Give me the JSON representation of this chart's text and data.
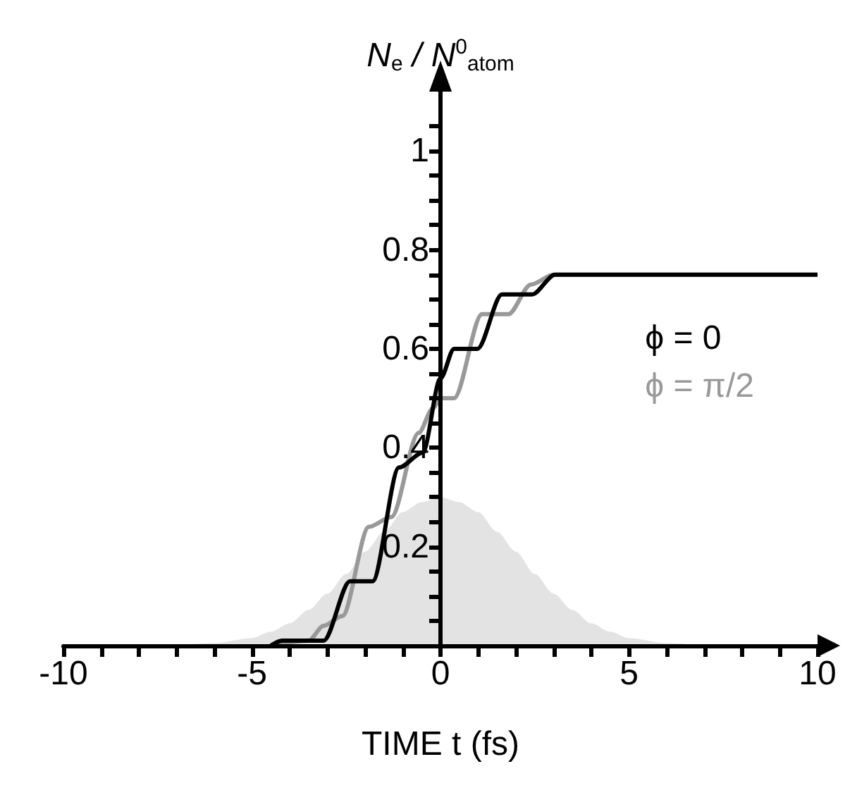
{
  "chart_data": {
    "type": "line",
    "xlabel": "TIME t (fs)",
    "ylabel": "N$_{e}$ / N$^{0}$$_{atom}$",
    "xlim": [
      -10,
      10
    ],
    "ylim": [
      0,
      1.12
    ],
    "xticks": [
      -10,
      {
        "value": -9,
        "label": null
      },
      {
        "value": -8,
        "label": null
      },
      {
        "value": -7,
        "label": null
      },
      {
        "value": -6,
        "label": null
      },
      -5,
      {
        "value": -4,
        "label": null
      },
      {
        "value": -3,
        "label": null
      },
      {
        "value": -2,
        "label": null
      },
      {
        "value": -1,
        "label": null
      },
      0,
      {
        "value": 1,
        "label": null
      },
      {
        "value": 2,
        "label": null
      },
      {
        "value": 3,
        "label": null
      },
      {
        "value": 4,
        "label": null
      },
      5,
      {
        "value": 6,
        "label": null
      },
      {
        "value": 7,
        "label": null
      },
      {
        "value": 8,
        "label": null
      },
      {
        "value": 9,
        "label": null
      },
      10
    ],
    "yticks": [
      {
        "value": 0,
        "label": null
      },
      {
        "value": 0.05,
        "label": null
      },
      {
        "value": 0.1,
        "label": null
      },
      {
        "value": 0.15,
        "label": null
      },
      0.2,
      {
        "value": 0.25,
        "label": null
      },
      {
        "value": 0.3,
        "label": null
      },
      {
        "value": 0.35,
        "label": null
      },
      0.4,
      {
        "value": 0.45,
        "label": null
      },
      {
        "value": 0.5,
        "label": null
      },
      {
        "value": 0.55,
        "label": null
      },
      0.6,
      {
        "value": 0.65,
        "label": null
      },
      {
        "value": 0.7,
        "label": null
      },
      {
        "value": 0.75,
        "label": null
      },
      0.8,
      {
        "value": 0.85,
        "label": null
      },
      {
        "value": 0.9,
        "label": null
      },
      {
        "value": 0.95,
        "label": null
      },
      1,
      {
        "value": 1.05,
        "label": null
      }
    ],
    "grid": false,
    "marker": "none",
    "legend": "right",
    "series": [
      {
        "type": "area",
        "color": "#e3e3e3",
        "x": [
          -7,
          -6,
          -5,
          -4.5,
          -4,
          -3.5,
          -3,
          -2.5,
          -2,
          -1.5,
          -1,
          -0.5,
          0,
          0.5,
          1,
          1.5,
          2,
          2.5,
          3,
          3.5,
          4,
          4.5,
          5,
          6,
          7
        ],
        "values": [
          0,
          0.005,
          0.015,
          0.028,
          0.045,
          0.072,
          0.105,
          0.145,
          0.19,
          0.23,
          0.27,
          0.29,
          0.3,
          0.29,
          0.27,
          0.23,
          0.19,
          0.145,
          0.105,
          0.072,
          0.045,
          0.028,
          0.015,
          0.005,
          0
        ]
      },
      {
        "name": "ϕ = π/2",
        "color": "#999999",
        "x": [
          -4.5,
          -3.5,
          -3.1,
          -2.6,
          -1.9,
          -1.3,
          -0.58,
          -0.2,
          0,
          0.36,
          1.1,
          1.8,
          2.4,
          3,
          10
        ],
        "values": [
          0,
          0.01,
          0.04,
          0.06,
          0.24,
          0.26,
          0.43,
          0.48,
          0.5,
          0.5,
          0.67,
          0.67,
          0.73,
          0.75,
          0.75
        ]
      },
      {
        "name": "ϕ = 0",
        "color": "#000000",
        "x": [
          -4.5,
          -4.2,
          -3.1,
          -2.4,
          -1.8,
          -1.1,
          -0.47,
          0,
          0.36,
          0.98,
          1.63,
          2.43,
          3.04,
          10
        ],
        "values": [
          0,
          0.01,
          0.01,
          0.13,
          0.13,
          0.36,
          0.39,
          0.54,
          0.6,
          0.6,
          0.71,
          0.71,
          0.75,
          0.75
        ]
      }
    ]
  }
}
